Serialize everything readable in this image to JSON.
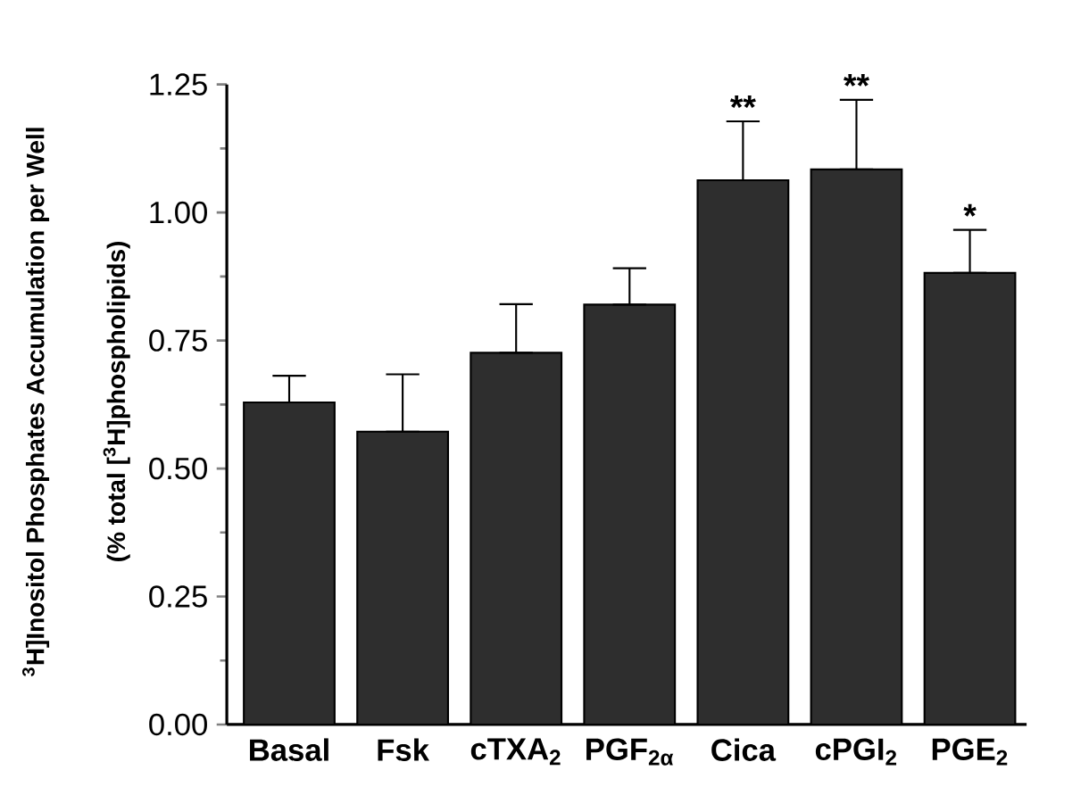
{
  "chart_data": {
    "type": "bar",
    "ylabel": "$^{3}$H]Inositol Phosphates Accumulation per Well (% total [$^{3}$H]phospholipids)",
    "categories": [
      "Basal",
      "Fsk",
      "cTXA$_{2}$",
      "PGF$_{2α}$",
      "Cica",
      "cPGI$_{2}$",
      "PGE$_{2}$"
    ],
    "values": [
      0.629,
      0.572,
      0.726,
      0.82,
      1.063,
      1.084,
      0.882
    ],
    "errors": [
      [
        0.629,
        0.681
      ],
      [
        0.572,
        0.684
      ],
      [
        0.726,
        0.821
      ],
      [
        0.82,
        0.891
      ],
      [
        1.063,
        1.178
      ],
      [
        1.084,
        1.22
      ],
      [
        0.882,
        0.966
      ]
    ],
    "color": "#2e2e2e",
    "ylim": [
      0,
      1.25
    ],
    "yticks": [
      {
        "value": 0,
        "label": "0.00"
      },
      {
        "value": 0.25,
        "label": "0.25"
      },
      {
        "value": 0.5,
        "label": "0.50"
      },
      {
        "value": 0.75,
        "label": "0.75"
      },
      {
        "value": 1.0,
        "label": "1.00"
      },
      {
        "value": 1.25,
        "label": "1.25"
      }
    ],
    "annotations": [
      {
        "text": "**",
        "x": "Cica",
        "y": 1.178
      },
      {
        "text": "**",
        "x": "cPGI$_{2}$",
        "y": 1.22
      },
      {
        "text": "*",
        "x": "PGE$_{2}$",
        "y": 0.966
      }
    ]
  }
}
